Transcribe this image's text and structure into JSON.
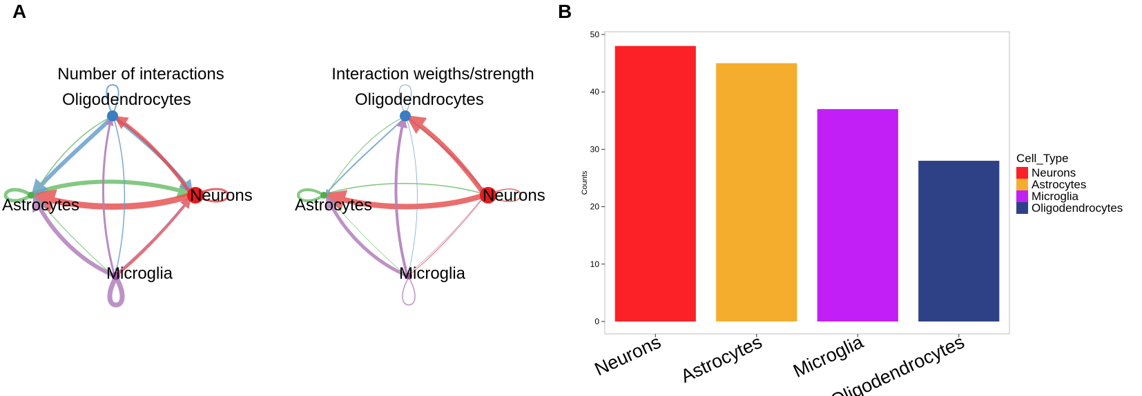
{
  "figure": {
    "panel_a_label": "A",
    "panel_b_label": "B"
  },
  "networks": [
    {
      "title": "Number of interactions",
      "nodes": [
        {
          "name": "Oligodendrocytes",
          "color": "#3b7dc0"
        },
        {
          "name": "Neurons",
          "color": "#e41a1c"
        },
        {
          "name": "Astrocytes",
          "color": "#4daf4a"
        },
        {
          "name": "Microglia",
          "color": "#984ea3"
        }
      ]
    },
    {
      "title": "Interaction weigths/strength",
      "nodes": [
        {
          "name": "Oligodendrocytes",
          "color": "#3b7dc0"
        },
        {
          "name": "Neurons",
          "color": "#e41a1c"
        },
        {
          "name": "Astrocytes",
          "color": "#4daf4a"
        },
        {
          "name": "Microglia",
          "color": "#984ea3"
        }
      ]
    }
  ],
  "chart_data": {
    "type": "bar",
    "title": "",
    "xlabel": "",
    "ylabel": "Counts",
    "categories": [
      "Neurons",
      "Astrocytes",
      "Microglia",
      "Oligodendrocytes"
    ],
    "values": [
      48,
      45,
      37,
      28
    ],
    "colors": [
      "#fc2027",
      "#f5ad2e",
      "#c11ff5",
      "#2f4186"
    ],
    "ylim": [
      0,
      50
    ],
    "yticks": [
      0,
      10,
      20,
      30,
      40,
      50
    ],
    "legend": {
      "title": "Cell_Type",
      "position": "right",
      "entries": [
        "Neurons",
        "Astrocytes",
        "Microglia",
        "Oligodendrocytes"
      ]
    },
    "grid": false
  }
}
